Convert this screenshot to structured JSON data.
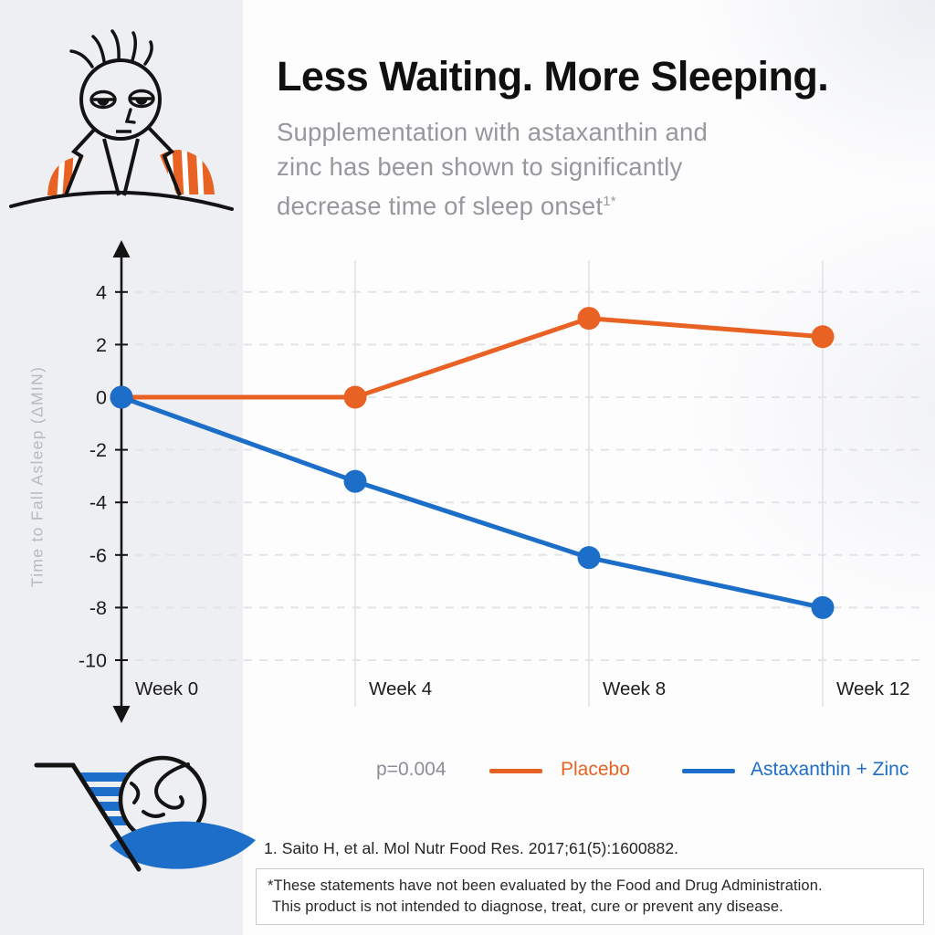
{
  "header": {
    "title": "Less Waiting. More Sleeping.",
    "subtitle_lines": [
      "Supplementation with astaxanthin and",
      "zinc has been shown to significantly",
      "decrease time of sleep onset"
    ],
    "subtitle_sup": "1*"
  },
  "chart_data": {
    "type": "line",
    "categories": [
      "Week 0",
      "Week 4",
      "Week 8",
      "Week 12"
    ],
    "series": [
      {
        "name": "Placebo",
        "color": "#E86224",
        "values": [
          0,
          0,
          3,
          2.3
        ]
      },
      {
        "name": "Astaxanthin + Zinc",
        "color": "#1D6EC8",
        "values": [
          0,
          -3.2,
          -6.1,
          -8
        ]
      }
    ],
    "xlabel": "",
    "ylabel": "Time to Fall Asleep (ΔMIN)",
    "yticks": [
      4,
      2,
      0,
      -2,
      -4,
      -6,
      -8,
      -10
    ],
    "ylim": [
      -11.5,
      5.5
    ],
    "grid": {
      "horizontal": "dashed",
      "vertical": "solid"
    },
    "significance": "p=0.004",
    "legend_position": "bottom"
  },
  "legend": {
    "p_value": "p=0.004"
  },
  "footer": {
    "citation": "1. Saito H, et al. Mol Nutr Food Res. 2017;61(5):1600882.",
    "disclaimer_lines": [
      "*These statements have not been evaluated by the Food and Drug Administration.",
      "This product is not intended to diagnose, treat, cure or prevent any disease."
    ]
  },
  "illustrations": {
    "awake_person": "tired person with droopy eyes sitting up in bed",
    "sleeping_person": "person sleeping on a blue pillow"
  },
  "colors": {
    "placebo": "#E86224",
    "astaxanthin_zinc": "#1D6EC8",
    "left_panel_bg": "#EDEFF3",
    "axis": "#141414",
    "muted_text": "#96989D"
  }
}
